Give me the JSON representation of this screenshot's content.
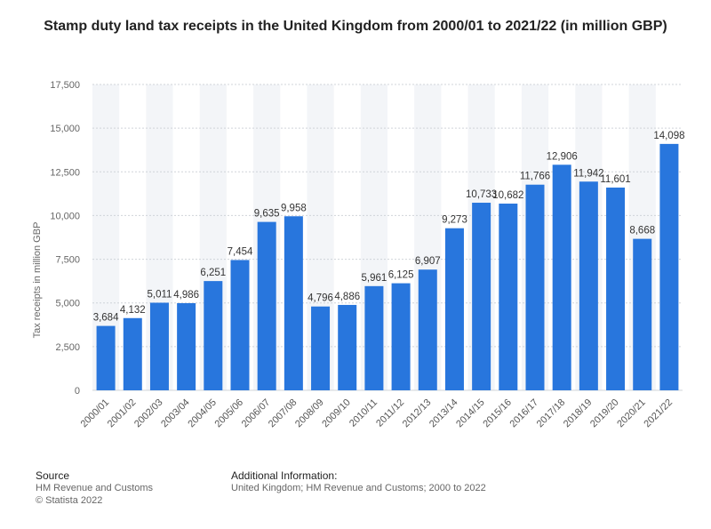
{
  "title": "Stamp duty land tax receipts in the United Kingdom from 2000/01 to 2021/22 (in million GBP)",
  "footer": {
    "source_heading": "Source",
    "source_lines": [
      "HM Revenue and Customs",
      "© Statista 2022"
    ],
    "info_heading": "Additional Information:",
    "info_lines": [
      "United Kingdom; HM Revenue and Customs; 2000 to 2022"
    ]
  },
  "colors": {
    "bar": "#2876dd",
    "band": "#f3f5f8",
    "grid": "#d0d4d9"
  },
  "chart_data": {
    "type": "bar",
    "title": "Stamp duty land tax receipts in the United Kingdom from 2000/01 to 2021/22 (in million GBP)",
    "xlabel": "",
    "ylabel": "Tax receipts in million GBP",
    "ylim": [
      0,
      17500
    ],
    "yticks": [
      0,
      2500,
      5000,
      7500,
      10000,
      12500,
      15000,
      17500
    ],
    "ytick_labels": [
      "0",
      "2,500",
      "5,000",
      "7,500",
      "10,000",
      "12,500",
      "15,000",
      "17,500"
    ],
    "grid": true,
    "categories": [
      "2000/01",
      "2001/02",
      "2002/03",
      "2003/04",
      "2004/05",
      "2005/06",
      "2006/07",
      "2007/08",
      "2008/09",
      "2009/10",
      "2010/11",
      "2011/12",
      "2012/13",
      "2013/14",
      "2014/15",
      "2015/16",
      "2016/17",
      "2017/18",
      "2018/19",
      "2019/20",
      "2020/21",
      "2021/22"
    ],
    "values": [
      3684,
      4132,
      5011,
      4986,
      6251,
      7454,
      9635,
      9958,
      4796,
      4886,
      5961,
      6125,
      6907,
      9273,
      10733,
      10682,
      11766,
      12906,
      11942,
      11601,
      8668,
      14098
    ],
    "value_labels": [
      "3,684",
      "4,132",
      "5,011",
      "4,986",
      "6,251",
      "7,454",
      "9,635",
      "9,958",
      "4,796",
      "4,886",
      "5,961",
      "6,125",
      "6,907",
      "9,273",
      "10,733",
      "10,682",
      "11,766",
      "12,906",
      "11,942",
      "11,601",
      "8,668",
      "14,098"
    ]
  }
}
